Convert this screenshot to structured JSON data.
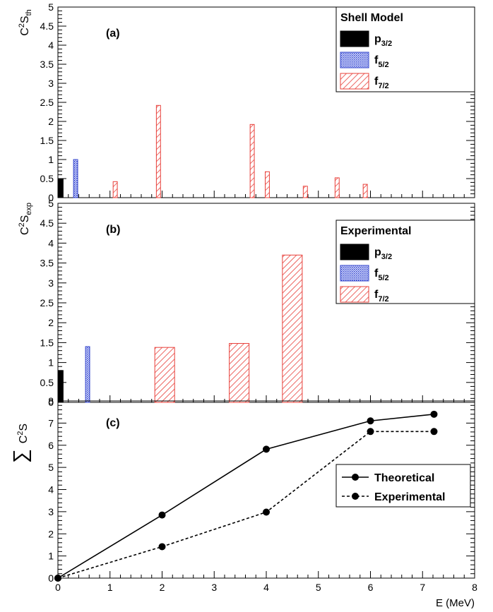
{
  "chart_data": [
    {
      "id": "a",
      "type": "bar",
      "panel_label": "(a)",
      "ylabel": {
        "base": "C",
        "sup": "2",
        "mid": "S",
        "sub": "th"
      },
      "ylim": [
        0,
        5
      ],
      "yticks": [
        0,
        0.5,
        1,
        1.5,
        2,
        2.5,
        3,
        3.5,
        4,
        4.5,
        5
      ],
      "ytick_labels": [
        "0",
        "0.5",
        "1",
        "1.5",
        "2",
        "2.5",
        "3",
        "3.5",
        "4",
        "4.5",
        "5"
      ],
      "xlim": [
        0,
        8
      ],
      "legend": {
        "title": "Shell Model",
        "entries": [
          {
            "main": "p",
            "sub": "3/2",
            "style": "solid"
          },
          {
            "main": "f",
            "sub": "5/2",
            "style": "blue"
          },
          {
            "main": "f",
            "sub": "7/2",
            "style": "hatch"
          }
        ]
      },
      "bars": [
        {
          "x": 0.05,
          "width": 0.1,
          "value": 0.5,
          "style": "solid"
        },
        {
          "x": 0.34,
          "width": 0.08,
          "value": 1.0,
          "style": "blue"
        },
        {
          "x": 1.1,
          "width": 0.08,
          "value": 0.42,
          "style": "hatch"
        },
        {
          "x": 1.93,
          "width": 0.08,
          "value": 2.42,
          "style": "hatch"
        },
        {
          "x": 3.73,
          "width": 0.08,
          "value": 1.92,
          "style": "hatch"
        },
        {
          "x": 4.02,
          "width": 0.08,
          "value": 0.68,
          "style": "hatch"
        },
        {
          "x": 4.75,
          "width": 0.08,
          "value": 0.3,
          "style": "hatch"
        },
        {
          "x": 5.36,
          "width": 0.08,
          "value": 0.52,
          "style": "hatch"
        },
        {
          "x": 5.9,
          "width": 0.08,
          "value": 0.35,
          "style": "hatch"
        }
      ]
    },
    {
      "id": "b",
      "type": "bar",
      "panel_label": "(b)",
      "ylabel": {
        "base": "C",
        "sup": "2",
        "mid": "S",
        "sub": "exp"
      },
      "ylim": [
        0,
        5
      ],
      "yticks": [
        0,
        0.5,
        1,
        1.5,
        2,
        2.5,
        3,
        3.5,
        4,
        4.5,
        5
      ],
      "ytick_labels": [
        "0",
        "0.5",
        "1",
        "1.5",
        "2",
        "2.5",
        "3",
        "3.5",
        "4",
        "4.5",
        "5"
      ],
      "xlim": [
        0,
        8
      ],
      "legend": {
        "title": "Experimental",
        "entries": [
          {
            "main": "p",
            "sub": "3/2",
            "style": "solid"
          },
          {
            "main": "f",
            "sub": "5/2",
            "style": "blue"
          },
          {
            "main": "f",
            "sub": "7/2",
            "style": "hatch"
          }
        ]
      },
      "bars": [
        {
          "x": 0.05,
          "width": 0.1,
          "value": 0.8,
          "style": "solid"
        },
        {
          "x": 0.57,
          "width": 0.08,
          "value": 1.4,
          "style": "blue"
        },
        {
          "x": 2.05,
          "width": 0.38,
          "value": 1.38,
          "style": "hatch"
        },
        {
          "x": 3.48,
          "width": 0.38,
          "value": 1.48,
          "style": "hatch"
        },
        {
          "x": 4.5,
          "width": 0.38,
          "value": 3.7,
          "style": "hatch"
        }
      ]
    },
    {
      "id": "c",
      "type": "line",
      "panel_label": "(c)",
      "ylabel": {
        "sigma": "∑",
        "base": "C",
        "sup": "2",
        "mid": "S"
      },
      "ylim": [
        0,
        8
      ],
      "yticks": [
        0,
        1,
        2,
        3,
        4,
        5,
        6,
        7,
        8
      ],
      "ytick_labels": [
        "0",
        "1",
        "2",
        "3",
        "4",
        "5",
        "6",
        "7",
        "8"
      ],
      "xlim": [
        0,
        8
      ],
      "xticks": [
        0,
        1,
        2,
        3,
        4,
        5,
        6,
        7,
        8
      ],
      "xtick_labels": [
        "0",
        "1",
        "2",
        "3",
        "4",
        "5",
        "6",
        "7",
        "8"
      ],
      "xlabel": "E (MeV)",
      "series": [
        {
          "name": "Theoretical",
          "dash": "solid",
          "x": [
            0,
            2,
            4,
            6,
            7.22
          ],
          "y": [
            0,
            2.85,
            5.82,
            7.1,
            7.4
          ]
        },
        {
          "name": "Experimental",
          "dash": "dashed",
          "x": [
            0,
            2,
            4,
            6,
            7.22
          ],
          "y": [
            0,
            1.42,
            2.98,
            6.62,
            6.62
          ]
        }
      ]
    }
  ]
}
